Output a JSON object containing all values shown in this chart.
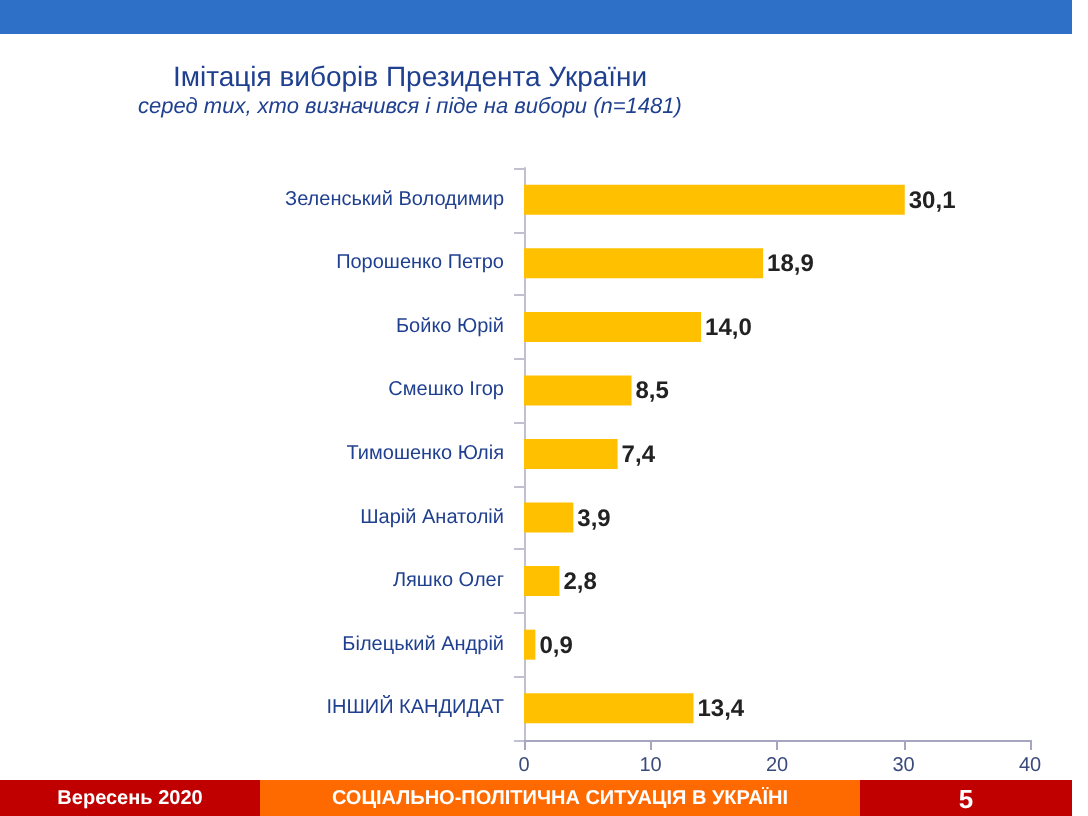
{
  "chart_data": {
    "type": "bar",
    "orientation": "horizontal",
    "title": "Імітація виборів Президента України",
    "subtitle": "серед тих, хто визначився і піде на вибори (n=1481)",
    "categories": [
      "Зеленський Володимир",
      "Порошенко Петро",
      "Бойко Юрій",
      "Смешко Ігор",
      "Тимошенко Юлія",
      "Шарій Анатолій",
      "Ляшко Олег",
      "Білецький Андрій",
      "ІНШИЙ КАНДИДАТ"
    ],
    "values": [
      30.1,
      18.9,
      14.0,
      8.5,
      7.4,
      3.9,
      2.8,
      0.9,
      13.4
    ],
    "value_labels": [
      "30,1",
      "18,9",
      "14,0",
      "8,5",
      "7,4",
      "3,9",
      "2,8",
      "0,9",
      "13,4"
    ],
    "color": "#ffc000",
    "xlim": [
      0,
      40
    ],
    "xticks": [
      0,
      10,
      20,
      30,
      40
    ],
    "grid": false,
    "annotations": [
      "Вересень 2020",
      "СОЦІАЛЬНО-ПОЛІТИЧНА СИТУАЦІЯ В УКРАЇНІ",
      "5"
    ]
  }
}
